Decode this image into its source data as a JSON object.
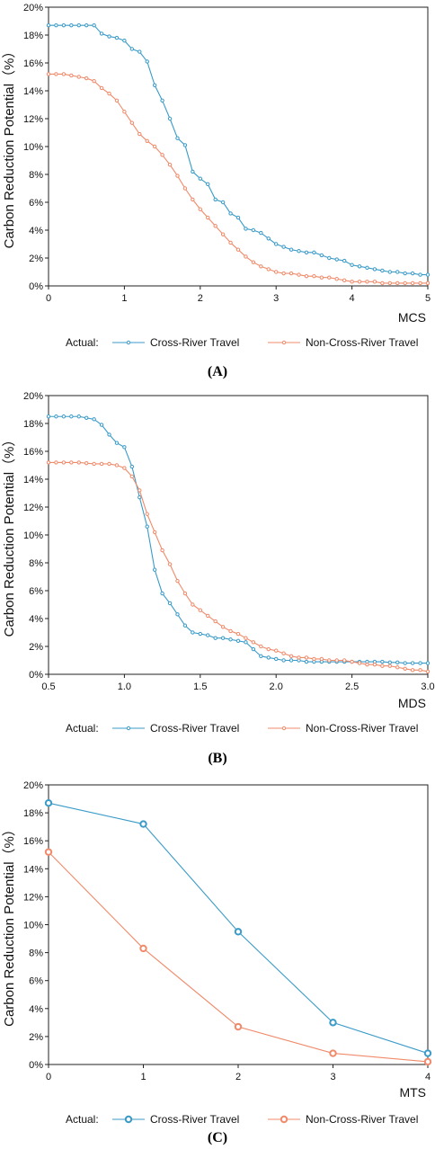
{
  "colors": {
    "cross": "#3a9bc8",
    "noncross": "#f08a6a"
  },
  "chart_data": [
    {
      "type": "line",
      "panel_label": "(A)",
      "xlabel": "MCS",
      "ylabel": "Carbon Reduction Potential（%）",
      "xlim": [
        0,
        5
      ],
      "ylim": [
        0,
        20
      ],
      "x_ticks": [
        "0",
        "1",
        "2",
        "3",
        "4",
        "5"
      ],
      "y_ticks": [
        "0%",
        "2%",
        "4%",
        "6%",
        "8%",
        "10%",
        "12%",
        "14%",
        "16%",
        "18%",
        "20%"
      ],
      "legend_prefix": "Actual:",
      "series": [
        {
          "name": "Cross-River Travel",
          "x": [
            0,
            0.1,
            0.2,
            0.3,
            0.4,
            0.5,
            0.6,
            0.7,
            0.8,
            0.9,
            1.0,
            1.1,
            1.2,
            1.3,
            1.4,
            1.5,
            1.6,
            1.7,
            1.8,
            1.9,
            2.0,
            2.1,
            2.2,
            2.3,
            2.4,
            2.5,
            2.6,
            2.7,
            2.8,
            2.9,
            3.0,
            3.1,
            3.2,
            3.3,
            3.4,
            3.5,
            3.6,
            3.7,
            3.8,
            3.9,
            4.0,
            4.1,
            4.2,
            4.3,
            4.4,
            4.5,
            4.6,
            4.7,
            4.8,
            4.9,
            5.0
          ],
          "y": [
            18.7,
            18.7,
            18.7,
            18.7,
            18.7,
            18.7,
            18.7,
            18.1,
            17.9,
            17.8,
            17.6,
            17.0,
            16.8,
            16.1,
            14.4,
            13.3,
            12.0,
            10.6,
            10.1,
            8.2,
            7.7,
            7.3,
            6.2,
            6.0,
            5.2,
            4.9,
            4.1,
            4.0,
            3.8,
            3.4,
            3.0,
            2.8,
            2.6,
            2.5,
            2.4,
            2.4,
            2.2,
            2.0,
            1.9,
            1.8,
            1.5,
            1.4,
            1.3,
            1.2,
            1.1,
            1.0,
            1.0,
            0.9,
            0.9,
            0.8,
            0.8
          ]
        },
        {
          "name": "Non-Cross-River Travel",
          "x": [
            0,
            0.1,
            0.2,
            0.3,
            0.4,
            0.5,
            0.6,
            0.7,
            0.8,
            0.9,
            1.0,
            1.1,
            1.2,
            1.3,
            1.4,
            1.5,
            1.6,
            1.7,
            1.8,
            1.9,
            2.0,
            2.1,
            2.2,
            2.3,
            2.4,
            2.5,
            2.6,
            2.7,
            2.8,
            2.9,
            3.0,
            3.1,
            3.2,
            3.3,
            3.4,
            3.5,
            3.6,
            3.7,
            3.8,
            3.9,
            4.0,
            4.1,
            4.2,
            4.3,
            4.4,
            4.5,
            4.6,
            4.7,
            4.8,
            4.9,
            5.0
          ],
          "y": [
            15.2,
            15.2,
            15.2,
            15.1,
            15.0,
            14.9,
            14.7,
            14.2,
            13.8,
            13.3,
            12.5,
            11.7,
            10.9,
            10.4,
            10.0,
            9.4,
            8.7,
            7.9,
            7.0,
            6.2,
            5.5,
            4.9,
            4.3,
            3.7,
            3.1,
            2.6,
            2.1,
            1.7,
            1.4,
            1.2,
            1.0,
            0.9,
            0.9,
            0.8,
            0.7,
            0.7,
            0.6,
            0.6,
            0.5,
            0.4,
            0.3,
            0.3,
            0.3,
            0.3,
            0.2,
            0.2,
            0.2,
            0.2,
            0.2,
            0.2,
            0.2
          ]
        }
      ]
    },
    {
      "type": "line",
      "panel_label": "(B)",
      "xlabel": "MDS",
      "ylabel": "Carbon Reduction Potential（%）",
      "xlim": [
        0.5,
        3.0
      ],
      "ylim": [
        0,
        20
      ],
      "x_ticks": [
        "0.5",
        "1.0",
        "1.5",
        "2.0",
        "2.5",
        "3.0"
      ],
      "y_ticks": [
        "0%",
        "2%",
        "4%",
        "6%",
        "8%",
        "10%",
        "12%",
        "14%",
        "16%",
        "18%",
        "20%"
      ],
      "legend_prefix": "Actual:",
      "series": [
        {
          "name": "Cross-River Travel",
          "x": [
            0.5,
            0.55,
            0.6,
            0.65,
            0.7,
            0.75,
            0.8,
            0.85,
            0.9,
            0.95,
            1.0,
            1.05,
            1.1,
            1.15,
            1.2,
            1.25,
            1.3,
            1.35,
            1.4,
            1.45,
            1.5,
            1.55,
            1.6,
            1.65,
            1.7,
            1.75,
            1.8,
            1.85,
            1.9,
            1.95,
            2.0,
            2.05,
            2.1,
            2.15,
            2.2,
            2.25,
            2.3,
            2.35,
            2.4,
            2.45,
            2.5,
            2.55,
            2.6,
            2.65,
            2.7,
            2.75,
            2.8,
            2.85,
            2.9,
            2.95,
            3.0
          ],
          "y": [
            18.5,
            18.5,
            18.5,
            18.5,
            18.5,
            18.4,
            18.3,
            17.9,
            17.2,
            16.6,
            16.3,
            14.9,
            12.7,
            10.6,
            7.5,
            5.8,
            5.1,
            4.3,
            3.5,
            3.0,
            2.9,
            2.8,
            2.6,
            2.6,
            2.5,
            2.4,
            2.3,
            1.8,
            1.3,
            1.2,
            1.1,
            1.0,
            1.0,
            1.0,
            0.9,
            0.9,
            0.9,
            0.9,
            0.9,
            0.9,
            0.9,
            0.9,
            0.9,
            0.9,
            0.9,
            0.85,
            0.85,
            0.8,
            0.8,
            0.8,
            0.8
          ]
        },
        {
          "name": "Non-Cross-River Travel",
          "x": [
            0.5,
            0.55,
            0.6,
            0.65,
            0.7,
            0.75,
            0.8,
            0.85,
            0.9,
            0.95,
            1.0,
            1.05,
            1.1,
            1.15,
            1.2,
            1.25,
            1.3,
            1.35,
            1.4,
            1.45,
            1.5,
            1.55,
            1.6,
            1.65,
            1.7,
            1.75,
            1.8,
            1.85,
            1.9,
            1.95,
            2.0,
            2.05,
            2.1,
            2.15,
            2.2,
            2.25,
            2.3,
            2.35,
            2.4,
            2.45,
            2.5,
            2.55,
            2.6,
            2.65,
            2.7,
            2.75,
            2.8,
            2.85,
            2.9,
            2.95,
            3.0
          ],
          "y": [
            15.2,
            15.2,
            15.2,
            15.2,
            15.2,
            15.15,
            15.1,
            15.1,
            15.1,
            15.0,
            14.8,
            14.2,
            13.2,
            11.5,
            10.2,
            8.9,
            7.9,
            6.7,
            5.8,
            5.0,
            4.6,
            4.2,
            3.8,
            3.4,
            3.1,
            2.9,
            2.6,
            2.3,
            2.0,
            1.8,
            1.7,
            1.5,
            1.3,
            1.2,
            1.2,
            1.1,
            1.1,
            1.0,
            1.0,
            1.0,
            0.9,
            0.8,
            0.7,
            0.7,
            0.6,
            0.6,
            0.5,
            0.4,
            0.3,
            0.3,
            0.2
          ]
        }
      ]
    },
    {
      "type": "line",
      "panel_label": "(C)",
      "xlabel": "MTS",
      "ylabel": "Carbon Reduction Potential（%）",
      "xlim": [
        0,
        4
      ],
      "ylim": [
        0,
        20
      ],
      "x_ticks": [
        "0",
        "1",
        "2",
        "3",
        "4"
      ],
      "y_ticks": [
        "0%",
        "2%",
        "4%",
        "6%",
        "8%",
        "10%",
        "12%",
        "14%",
        "16%",
        "18%",
        "20%"
      ],
      "legend_prefix": "Actual:",
      "series": [
        {
          "name": "Cross-River Travel",
          "x": [
            0,
            1,
            2,
            3,
            4
          ],
          "y": [
            18.7,
            17.2,
            9.5,
            3.0,
            0.8
          ]
        },
        {
          "name": "Non-Cross-River Travel",
          "x": [
            0,
            1,
            2,
            3,
            4
          ],
          "y": [
            15.2,
            8.3,
            2.7,
            0.8,
            0.2
          ]
        }
      ]
    }
  ]
}
